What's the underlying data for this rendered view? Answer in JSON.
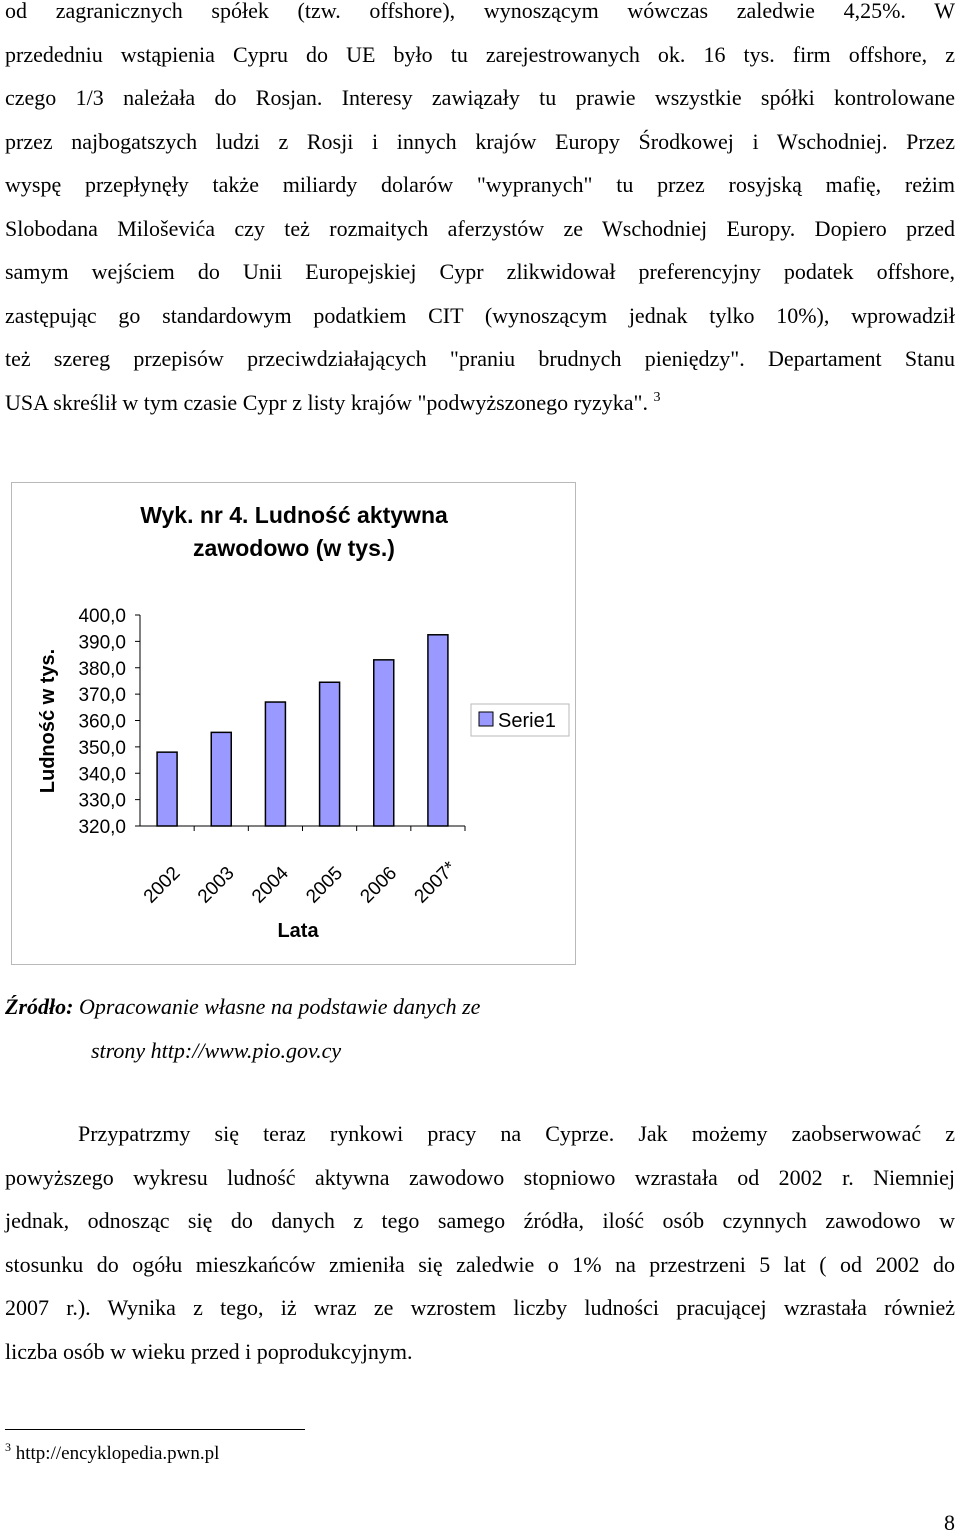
{
  "top_paragraph": {
    "lines": [
      "od zagranicznych spółek (tzw. offshore), wynoszącym wówczas zaledwie 4,25%. W",
      "przededniu wstąpienia Cypru do UE było tu zarejestrowanych ok. 16 tys. firm offshore, z",
      "czego 1/3 należała do Rosjan. Interesy zawiązały tu prawie wszystkie spółki kontrolowane",
      "przez najbogatszych ludzi z Rosji i innych krajów Europy Środkowej i Wschodniej. Przez",
      "wyspę przepłynęły także miliardy dolarów \"wypranych\" tu przez rosyjską mafię, reżim",
      "Slobodana Miloševića czy też rozmaitych aferzystów ze Wschodniej Europy. Dopiero przed",
      "samym wejściem do Unii Europejskiej Cypr zlikwidował preferencyjny podatek offshore,",
      "zastępując go standardowym podatkiem CIT (wynoszącym jednak tylko 10%), wprowadził",
      "też szereg przepisów przeciwdziałających \"praniu brudnych pieniędzy\". Departament Stanu",
      "USA skreślił w tym czasie Cypr z listy krajów \"podwyższonego ryzyka\"."
    ],
    "footnote_ref": "3"
  },
  "chart_data": {
    "type": "bar",
    "title_line1": "Wyk. nr 4. Ludność aktywna",
    "title_line2": "zawodowo (w tys.)",
    "categories": [
      "2002",
      "2003",
      "2004",
      "2005",
      "2006",
      "2007*"
    ],
    "series": [
      {
        "name": "Serie1",
        "values": [
          348.0,
          355.5,
          367.0,
          374.5,
          383.0,
          392.5
        ],
        "color": "#9999ff"
      }
    ],
    "ylabel": "Ludność w tys.",
    "xlabel": "Lata",
    "ylim": [
      320,
      400
    ],
    "yticks": [
      "400,0",
      "390,0",
      "380,0",
      "370,0",
      "360,0",
      "350,0",
      "340,0",
      "330,0",
      "320,0"
    ],
    "grid": false,
    "legend": "right"
  },
  "source": {
    "label": "Źródło:",
    "text_line1": " Opracowanie własne na podstawie danych ze",
    "text_line2": "strony http://www.pio.gov.cy"
  },
  "bottom_paragraph": {
    "lines": [
      "Przypatrzmy się teraz rynkowi pracy na Cyprze. Jak możemy zaobserwować z",
      "powyższego wykresu ludność aktywna zawodowo stopniowo wzrastała od 2002 r. Niemniej",
      "jednak, odnosząc się do danych z tego samego źródła, ilość osób czynnych zawodowo w",
      "stosunku do ogółu mieszkańców zmieniła się zaledwie o 1% na przestrzeni 5 lat ( od 2002 do",
      "2007 r.). Wynika z tego, iż wraz ze wzrostem liczby ludności pracującej wzrastała również",
      "liczba osób w wieku przed i  poprodukcyjnym."
    ]
  },
  "footnote": {
    "number": "3",
    "text": " http://encyklopedia.pwn.pl"
  },
  "page_number": "8"
}
